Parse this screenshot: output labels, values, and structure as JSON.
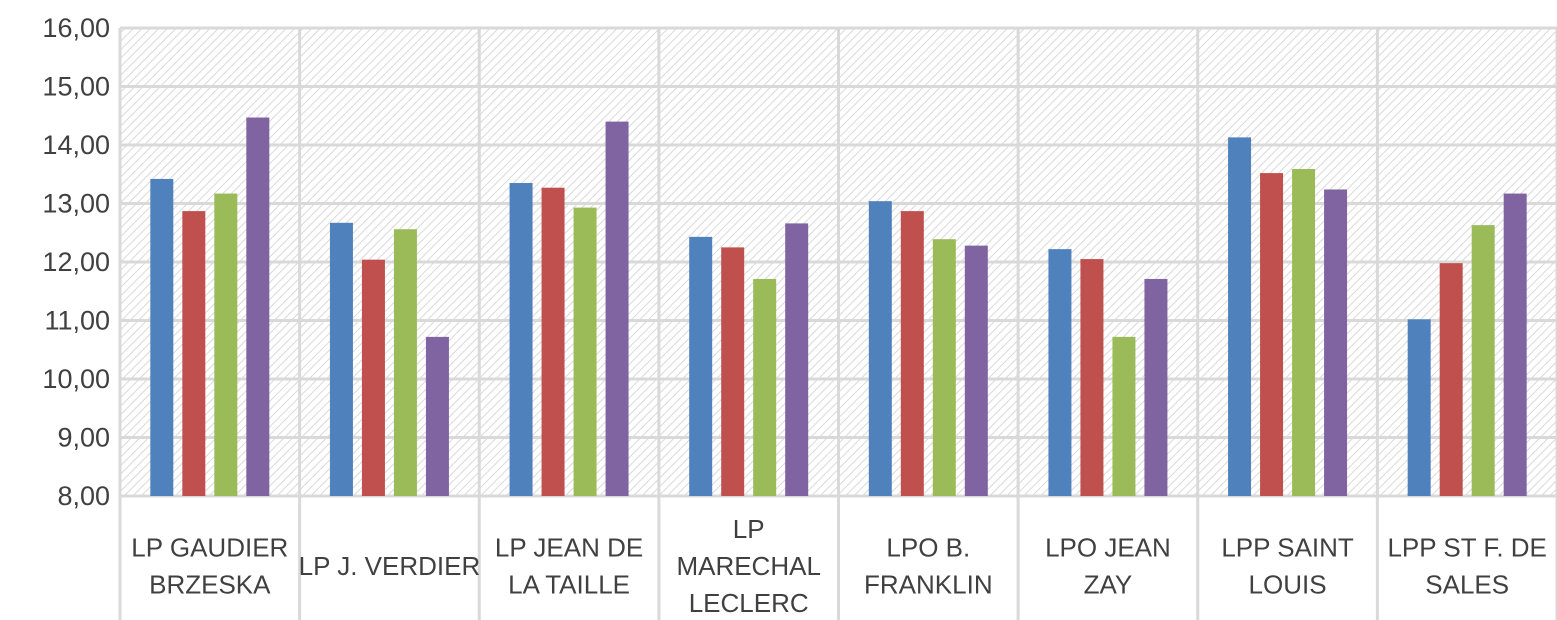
{
  "chart_data": {
    "type": "bar",
    "categories": [
      [
        "LP GAUDIER",
        "BRZESKA"
      ],
      [
        "LP J. VERDIER"
      ],
      [
        "LP JEAN DE",
        "LA TAILLE"
      ],
      [
        "LP",
        "MARECHAL",
        "LECLERC"
      ],
      [
        "LPO B.",
        "FRANKLIN"
      ],
      [
        "LPO JEAN",
        "ZAY"
      ],
      [
        "LPP SAINT",
        "LOUIS"
      ],
      [
        "LPP ST F. DE",
        "SALES"
      ]
    ],
    "series": [
      {
        "color": "#4f81bd",
        "values": [
          13.42,
          12.67,
          13.35,
          12.43,
          13.04,
          12.22,
          14.13,
          11.02
        ]
      },
      {
        "color": "#c0504d",
        "values": [
          12.87,
          12.04,
          13.27,
          12.25,
          12.87,
          12.05,
          13.52,
          11.98
        ]
      },
      {
        "color": "#9bbb59",
        "values": [
          13.17,
          12.56,
          12.93,
          11.71,
          12.39,
          10.72,
          13.59,
          12.63
        ]
      },
      {
        "color": "#8064a2",
        "values": [
          14.47,
          10.72,
          14.4,
          12.66,
          12.28,
          11.71,
          13.24,
          13.17
        ]
      }
    ],
    "ylim": [
      8,
      16
    ],
    "yticks": [
      "8,00",
      "9,00",
      "10,00",
      "11,00",
      "12,00",
      "13,00",
      "14,00",
      "15,00",
      "16,00"
    ],
    "grid": true,
    "title": "",
    "xlabel": "",
    "ylabel": ""
  }
}
